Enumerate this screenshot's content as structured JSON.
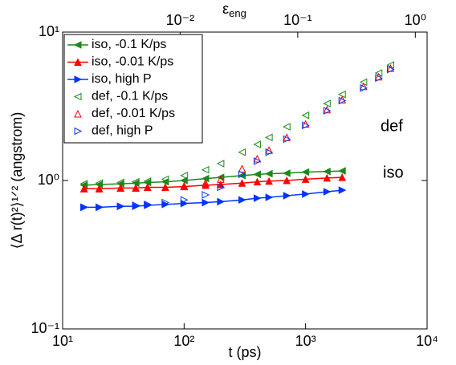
{
  "chart_data": {
    "type": "line",
    "xlabel": "t (ps)",
    "ylabel": "⟨Δ r(t)²⟩¹ᐟ² (angstrom)",
    "x2label": {
      "base": "ε",
      "sub": "eng"
    },
    "xscale": "log",
    "yscale": "log",
    "x2scale": "log",
    "xlim": [
      10,
      10000
    ],
    "xticks": [
      {
        "value": 10,
        "label": "10¹"
      },
      {
        "value": 100,
        "label": "10²"
      },
      {
        "value": 1000,
        "label": "10³"
      },
      {
        "value": 10000,
        "label": "10⁴"
      }
    ],
    "ylim": [
      0.1,
      10
    ],
    "yticks": [
      {
        "value": 0.1,
        "label": "10⁻¹"
      },
      {
        "value": 1,
        "label": "10⁰"
      },
      {
        "value": 10,
        "label": "10¹"
      }
    ],
    "x2lim": [
      0.001,
      1.26
    ],
    "x2ticks": [
      {
        "value": 0.01,
        "label": "10⁻²"
      },
      {
        "value": 0.1,
        "label": "10⁻¹"
      },
      {
        "value": 1,
        "label": "10⁰"
      }
    ],
    "legend": "upper left",
    "annotations": [
      "def",
      "iso"
    ],
    "x": [
      15,
      20,
      30,
      40,
      50,
      70,
      100,
      150,
      200,
      300,
      400,
      500,
      700,
      1000,
      1500,
      2000,
      3000,
      4000,
      5000
    ],
    "series": [
      {
        "name": "iso, -0.1 K/ps",
        "color": "#1a8a1a",
        "marker": "left",
        "filled": true,
        "values": [
          0.93,
          0.94,
          0.95,
          0.96,
          0.97,
          0.98,
          1.0,
          1.03,
          1.05,
          1.08,
          1.1,
          1.11,
          1.12,
          1.14,
          1.15,
          1.16,
          null,
          null,
          null
        ]
      },
      {
        "name": "iso, -0.01 K/ps",
        "color": "#ff0000",
        "marker": "up",
        "filled": true,
        "values": [
          0.88,
          0.88,
          0.89,
          0.89,
          0.9,
          0.9,
          0.91,
          0.93,
          0.94,
          0.96,
          0.98,
          0.99,
          1.0,
          1.02,
          1.04,
          1.05,
          null,
          null,
          null
        ]
      },
      {
        "name": "iso, high P",
        "color": "#0033ff",
        "marker": "right",
        "filled": true,
        "values": [
          0.66,
          0.66,
          0.67,
          0.67,
          0.68,
          0.69,
          0.7,
          0.71,
          0.72,
          0.74,
          0.76,
          0.77,
          0.79,
          0.81,
          0.84,
          0.86,
          null,
          null,
          null
        ]
      },
      {
        "name": "def, -0.1 K/ps",
        "color": "#1a8a1a",
        "marker": "left",
        "filled": false,
        "values": [
          0.95,
          0.96,
          0.97,
          0.98,
          0.99,
          1.02,
          1.08,
          1.18,
          1.3,
          1.55,
          1.75,
          1.95,
          2.3,
          2.75,
          3.3,
          3.8,
          4.6,
          5.3,
          6.0
        ]
      },
      {
        "name": "def, -0.01 K/ps",
        "color": "#ff0000",
        "marker": "up",
        "filled": false,
        "values": [
          0.88,
          0.88,
          0.89,
          0.89,
          0.9,
          0.9,
          0.92,
          0.96,
          1.02,
          1.2,
          1.4,
          1.6,
          1.95,
          2.4,
          3.0,
          3.5,
          4.3,
          5.0,
          5.7
        ]
      },
      {
        "name": "def, high P",
        "color": "#0033ff",
        "marker": "right",
        "filled": false,
        "values": [
          0.66,
          0.66,
          0.67,
          0.68,
          0.69,
          0.71,
          0.74,
          0.8,
          0.9,
          1.1,
          1.35,
          1.55,
          1.9,
          2.35,
          2.95,
          3.45,
          4.2,
          4.9,
          5.6
        ]
      }
    ]
  }
}
